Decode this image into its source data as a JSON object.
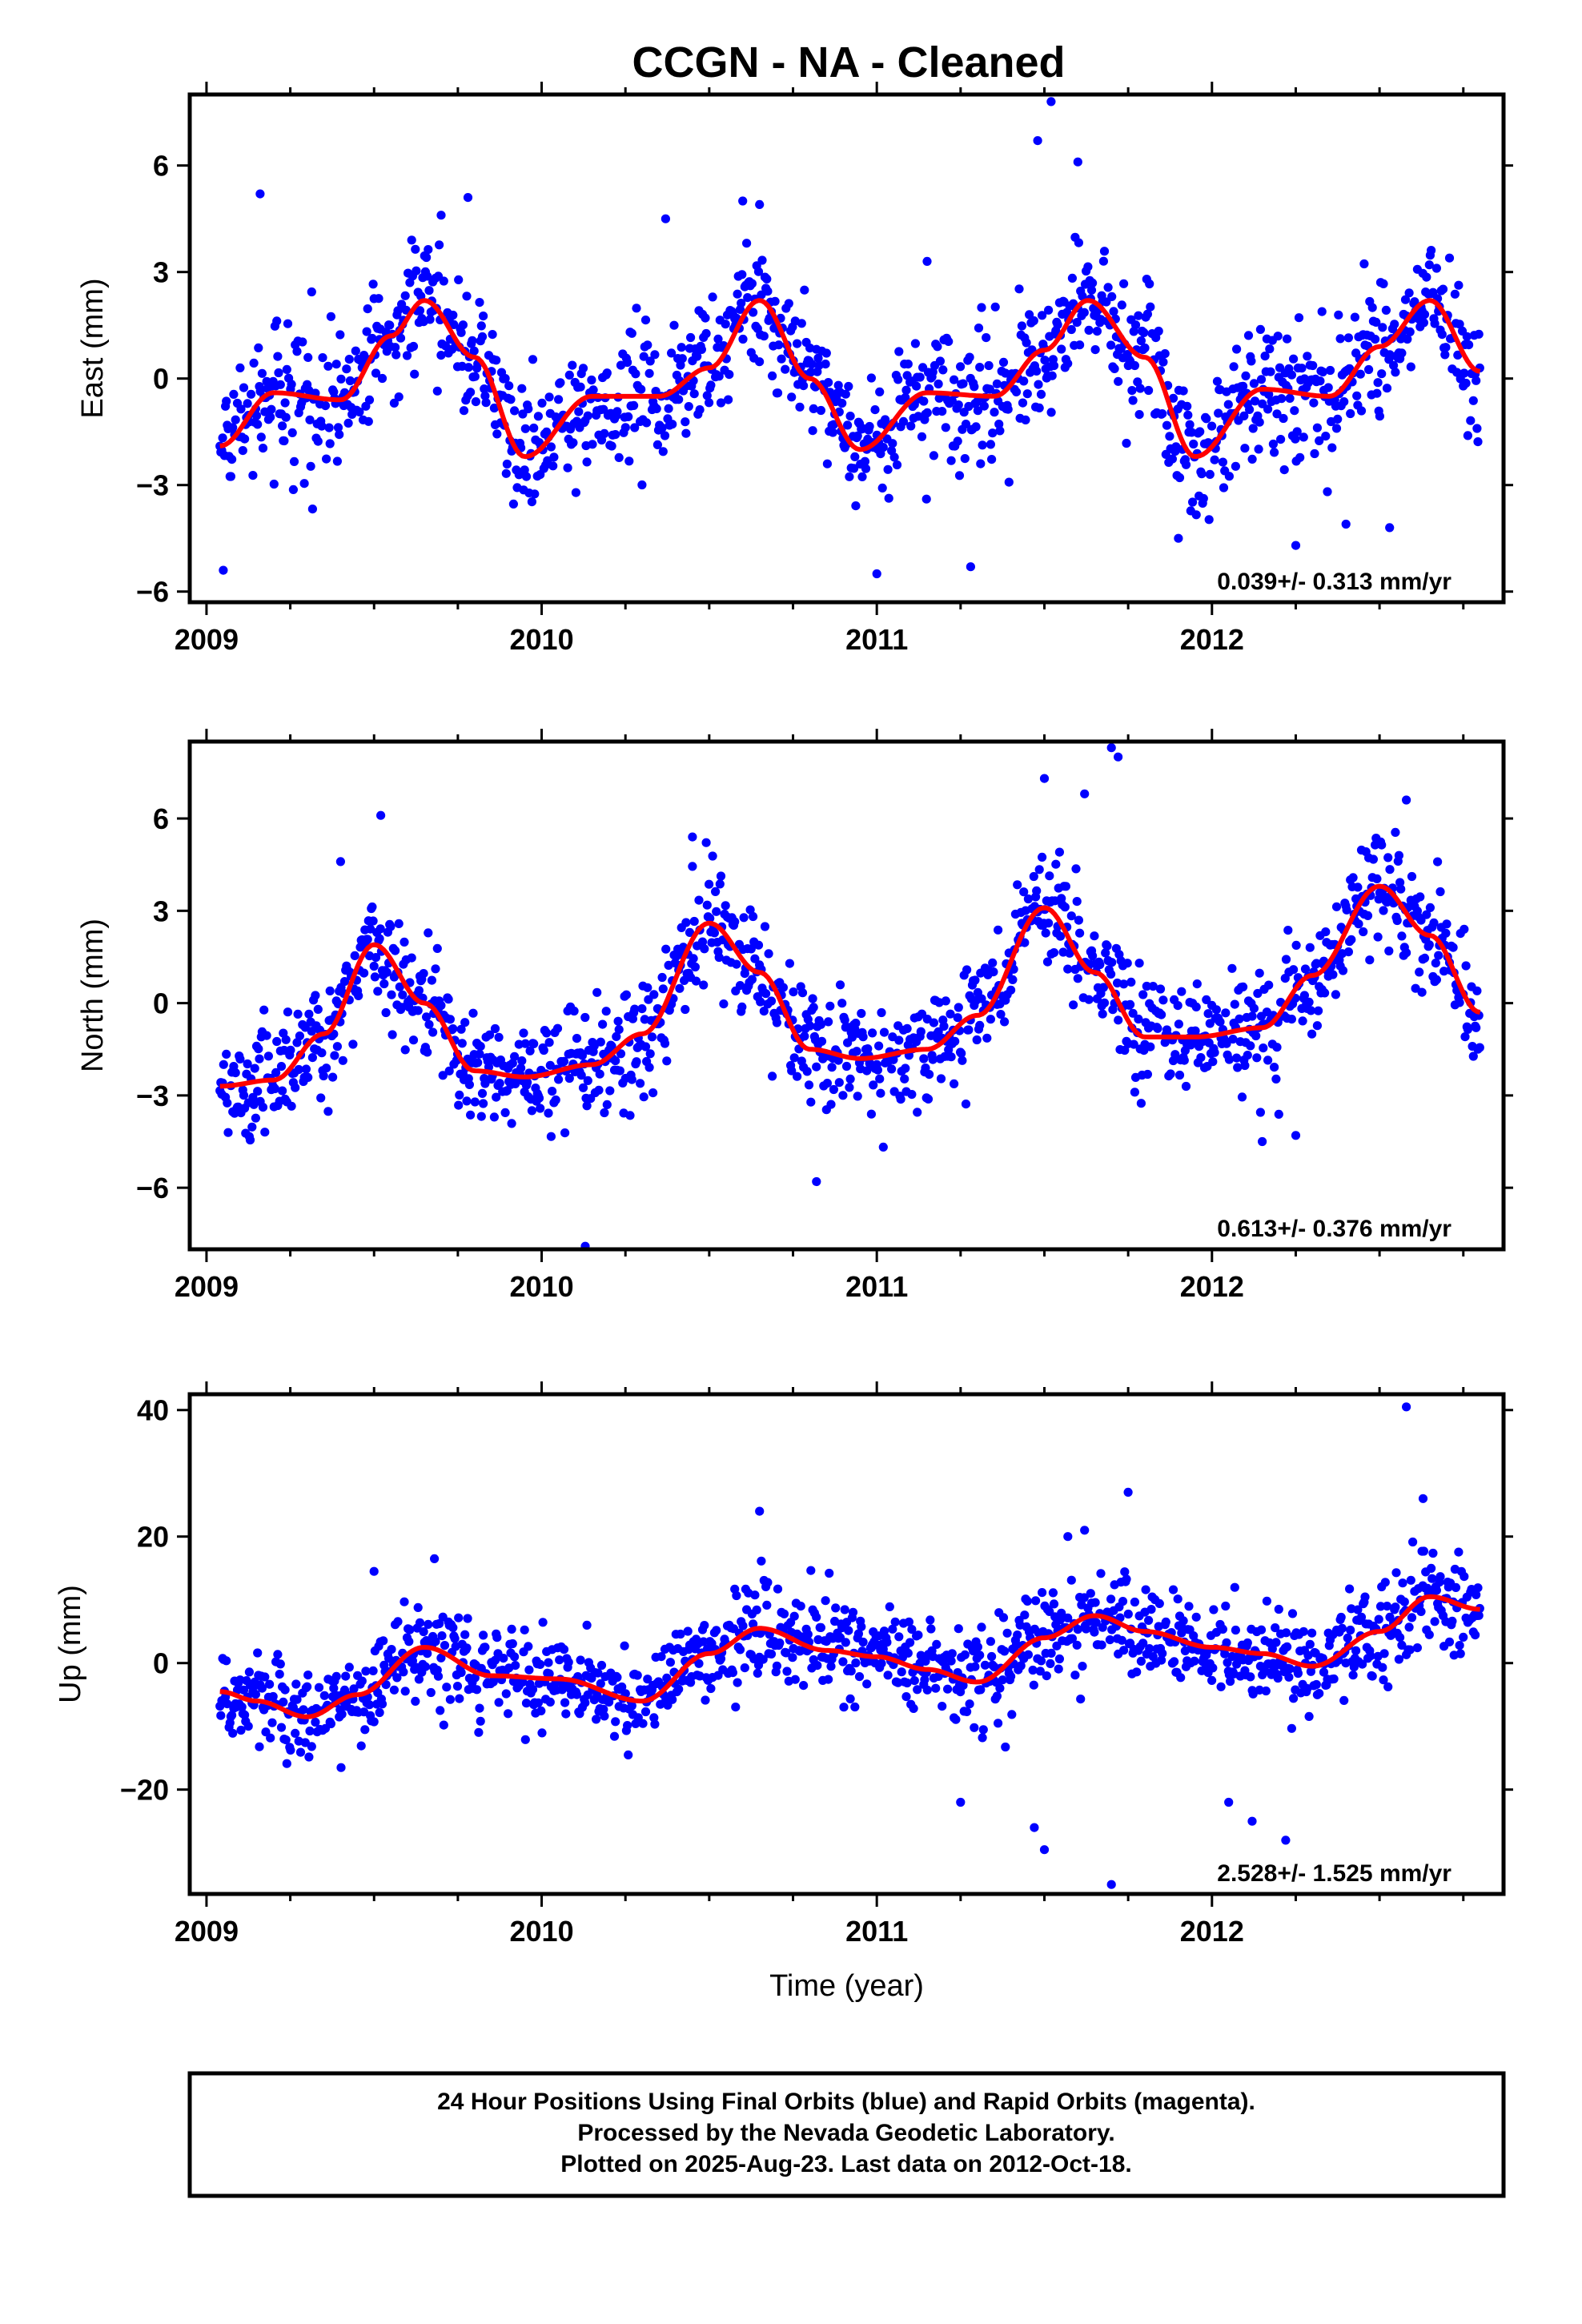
{
  "title": "CCGN  - NA - Cleaned",
  "colors": {
    "data_points": "#0000ff",
    "trend": "#ff0000",
    "frame": "#000000"
  },
  "footer": {
    "line1": "24 Hour Positions Using Final Orbits (blue) and Rapid Orbits (magenta).",
    "line2": "Processed by the Nevada Geodetic Laboratory.",
    "line3": "Plotted on 2025-Aug-23. Last data on 2012-Oct-18."
  },
  "chart_data": [
    {
      "type": "scatter",
      "ylabel": "East (mm)",
      "xlabel": "",
      "xlim": [
        2008.95,
        2012.87
      ],
      "ylim": [
        -6.3,
        8.0
      ],
      "x_ticks": [
        2009,
        2010,
        2011,
        2012
      ],
      "x_tick_labels": [
        "2009",
        "2010",
        "2011",
        "2012"
      ],
      "y_ticks": [
        -6,
        -3,
        0,
        3,
        6
      ],
      "y_tick_labels": [
        "−6",
        "−3",
        "0",
        "3",
        "6"
      ],
      "rate_annotation": "0.039+/- 0.313 mm/yr",
      "data_start": 2009.04,
      "data_end": 2012.8,
      "trend": {
        "x": [
          2009.04,
          2009.2,
          2009.4,
          2009.55,
          2009.65,
          2009.8,
          2009.95,
          2010.15,
          2010.35,
          2010.5,
          2010.65,
          2010.8,
          2010.95,
          2011.15,
          2011.35,
          2011.5,
          2011.63,
          2011.8,
          2011.95,
          2012.15,
          2012.35,
          2012.5,
          2012.65,
          2012.8
        ],
        "y": [
          -1.9,
          -0.4,
          -0.6,
          1.2,
          2.2,
          0.6,
          -2.2,
          -0.5,
          -0.5,
          0.3,
          2.2,
          0.0,
          -2.0,
          -0.4,
          -0.5,
          0.8,
          2.2,
          0.6,
          -2.2,
          -0.3,
          -0.5,
          0.9,
          2.2,
          0.2
        ]
      },
      "scatter_sd": 1.25,
      "scatter_outliers": {
        "x": [
          2009.05,
          2009.16,
          2009.7,
          2009.78,
          2010.37,
          2010.6,
          2010.65,
          2011.0,
          2011.15,
          2011.28,
          2011.48,
          2011.52,
          2011.6,
          2011.9,
          2012.25,
          2012.4,
          2012.53
        ],
        "y": [
          -5.4,
          5.2,
          4.6,
          5.1,
          4.5,
          5.0,
          4.9,
          -5.5,
          3.3,
          -5.3,
          6.7,
          7.8,
          6.1,
          -4.5,
          -4.7,
          -4.1,
          -4.2
        ]
      }
    },
    {
      "type": "scatter",
      "ylabel": "North (mm)",
      "xlabel": "",
      "xlim": [
        2008.95,
        2012.87
      ],
      "ylim": [
        -8.0,
        8.5
      ],
      "x_ticks": [
        2009,
        2010,
        2011,
        2012
      ],
      "x_tick_labels": [
        "2009",
        "2010",
        "2011",
        "2012"
      ],
      "y_ticks": [
        -6,
        -3,
        0,
        3,
        6
      ],
      "y_tick_labels": [
        "−6",
        "−3",
        "0",
        "3",
        "6"
      ],
      "rate_annotation": "0.613+/- 0.376 mm/yr",
      "data_start": 2009.04,
      "data_end": 2012.8,
      "trend": {
        "x": [
          2009.04,
          2009.2,
          2009.35,
          2009.5,
          2009.65,
          2009.8,
          2009.95,
          2010.15,
          2010.3,
          2010.5,
          2010.65,
          2010.8,
          2010.95,
          2011.15,
          2011.3,
          2011.5,
          2011.65,
          2011.8,
          2011.95,
          2012.15,
          2012.3,
          2012.5,
          2012.65,
          2012.8
        ],
        "y": [
          -2.7,
          -2.5,
          -1.0,
          1.9,
          0.0,
          -2.2,
          -2.4,
          -2.0,
          -1.0,
          2.6,
          1.0,
          -1.5,
          -1.8,
          -1.5,
          -0.4,
          3.1,
          1.0,
          -1.1,
          -1.1,
          -0.8,
          0.9,
          3.8,
          2.2,
          -0.3
        ]
      },
      "scatter_sd": 1.3,
      "scatter_outliers": {
        "x": [
          2009.4,
          2009.52,
          2010.13,
          2010.45,
          2010.82,
          2011.5,
          2011.62,
          2011.7,
          2011.72,
          2012.15,
          2012.25,
          2012.58
        ],
        "y": [
          4.6,
          6.1,
          -7.9,
          5.4,
          -5.8,
          7.3,
          6.8,
          8.3,
          8.0,
          -4.5,
          -4.3,
          6.6
        ]
      }
    },
    {
      "type": "scatter",
      "ylabel": "Up (mm)",
      "xlabel": "Time (year)",
      "xlim": [
        2008.95,
        2012.87
      ],
      "ylim": [
        -36.5,
        42.5
      ],
      "x_ticks": [
        2009,
        2010,
        2011,
        2012
      ],
      "x_tick_labels": [
        "2009",
        "2010",
        "2011",
        "2012"
      ],
      "y_ticks": [
        -20,
        0,
        20,
        40
      ],
      "y_tick_labels": [
        "−20",
        "0",
        "20",
        "40"
      ],
      "rate_annotation": "2.528+/- 1.525 mm/yr",
      "data_start": 2009.04,
      "data_end": 2012.8,
      "trend": {
        "x": [
          2009.04,
          2009.15,
          2009.3,
          2009.45,
          2009.65,
          2009.85,
          2010.05,
          2010.3,
          2010.5,
          2010.65,
          2010.85,
          2011.0,
          2011.15,
          2011.3,
          2011.5,
          2011.65,
          2011.8,
          2012.0,
          2012.15,
          2012.3,
          2012.5,
          2012.65,
          2012.8
        ],
        "y": [
          -4.5,
          -6.0,
          -8.5,
          -5.0,
          2.5,
          -2.0,
          -2.5,
          -6.0,
          1.5,
          5.5,
          2.0,
          1.0,
          -1.0,
          -3.0,
          4.0,
          7.5,
          5.0,
          2.5,
          1.5,
          -0.5,
          5.0,
          10.5,
          8.5
        ]
      },
      "scatter_sd": 5.2,
      "scatter_outliers": {
        "x": [
          2009.5,
          2009.68,
          2010.65,
          2011.25,
          2011.47,
          2011.5,
          2011.57,
          2011.62,
          2011.7,
          2011.75,
          2012.05,
          2012.12,
          2012.22,
          2012.58,
          2012.63
        ],
        "y": [
          14.5,
          16.5,
          24.0,
          -22.0,
          -26.0,
          -29.5,
          20.0,
          21.0,
          -35.0,
          27.0,
          -22.0,
          -25.0,
          -28.0,
          40.5,
          26.0
        ]
      }
    }
  ]
}
